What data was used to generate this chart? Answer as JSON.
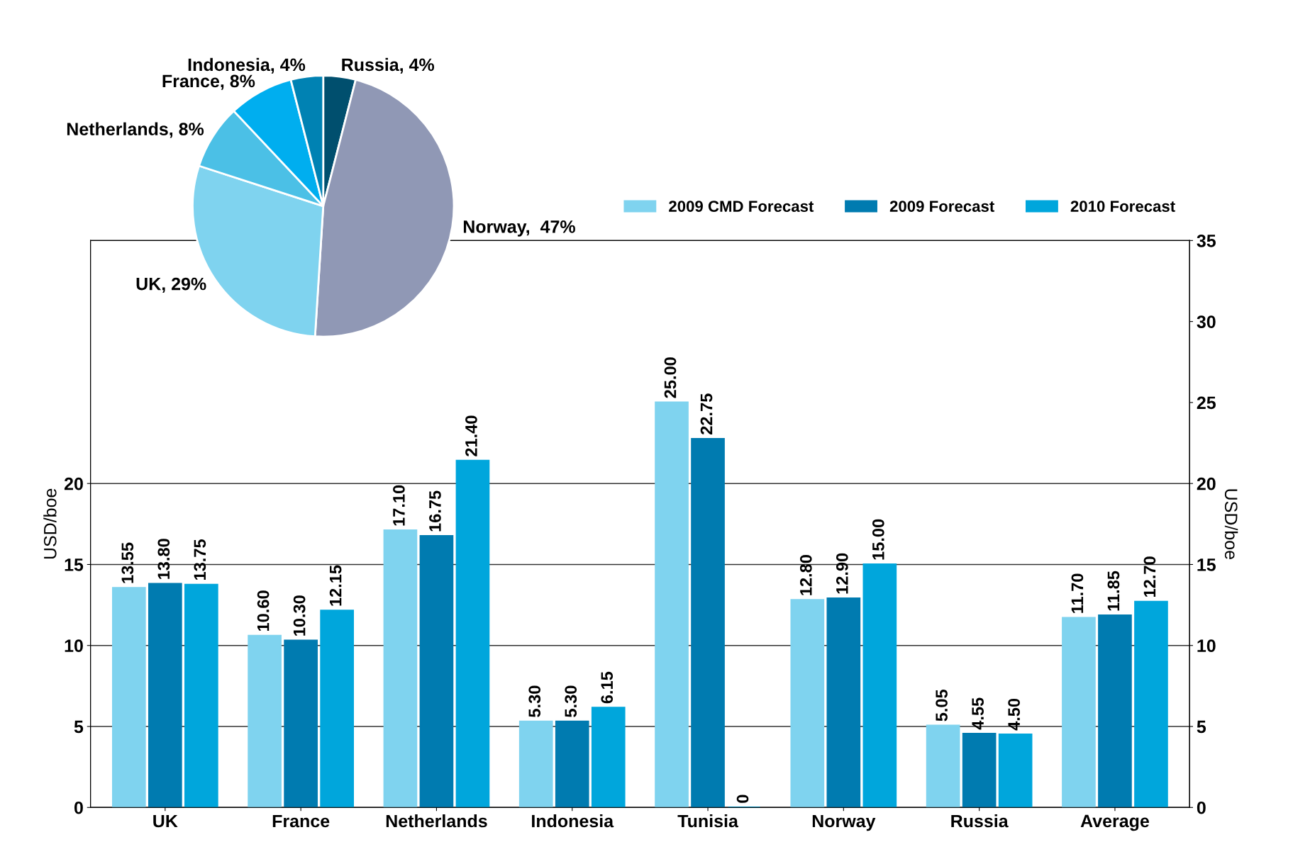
{
  "chart_data": [
    {
      "type": "bar",
      "ylabel": "USD/boe",
      "y2label": "USD/boe",
      "categories": [
        "UK",
        "France",
        "Netherlands",
        "Indonesia",
        "Tunisia",
        "Norway",
        "Russia",
        "Average"
      ],
      "series": [
        {
          "name": "2009 CMD Forecast",
          "color": "#7fd3ef",
          "values": [
            13.55,
            10.6,
            17.1,
            5.3,
            25.0,
            12.8,
            5.05,
            11.7
          ],
          "value_labels": [
            "13.55",
            "10.60",
            "17.10",
            "5.30",
            "25.00",
            "12.80",
            "5.05",
            "11.70"
          ]
        },
        {
          "name": "2009 Forecast",
          "color": "#007bb0",
          "values": [
            13.8,
            10.3,
            16.75,
            5.3,
            22.75,
            12.9,
            4.55,
            11.85
          ],
          "value_labels": [
            "13.80",
            "10.30",
            "16.75",
            "5.30",
            "22.75",
            "12.90",
            "4.55",
            "11.85"
          ]
        },
        {
          "name": "2010 Forecast",
          "color": "#00a6dc",
          "values": [
            13.75,
            12.15,
            21.4,
            6.15,
            0,
            15.0,
            4.5,
            12.7
          ],
          "value_labels": [
            "13.75",
            "12.15",
            "21.40",
            "6.15",
            "0",
            "15.00",
            "4.50",
            "12.70"
          ]
        }
      ],
      "ylim": [
        0,
        35
      ],
      "yticks": [
        0,
        5,
        10,
        15,
        20
      ],
      "y2lim": [
        0,
        35
      ],
      "y2ticks": [
        0,
        5,
        10,
        15,
        20,
        25,
        30,
        35
      ],
      "grid": "y",
      "legend": "top right"
    },
    {
      "type": "pie",
      "categories": [
        "Russia, 4%",
        "Norway,  47%",
        "UK, 29%",
        "Netherlands, 8%",
        "France, 8%",
        "Indonesia, 4%"
      ],
      "values": [
        4,
        47,
        29,
        8,
        8,
        4
      ],
      "colors": [
        "#004f6e",
        "#9098b5",
        "#7fd3ef",
        "#4bc0e6",
        "#00aeef",
        "#0082b3"
      ]
    }
  ]
}
